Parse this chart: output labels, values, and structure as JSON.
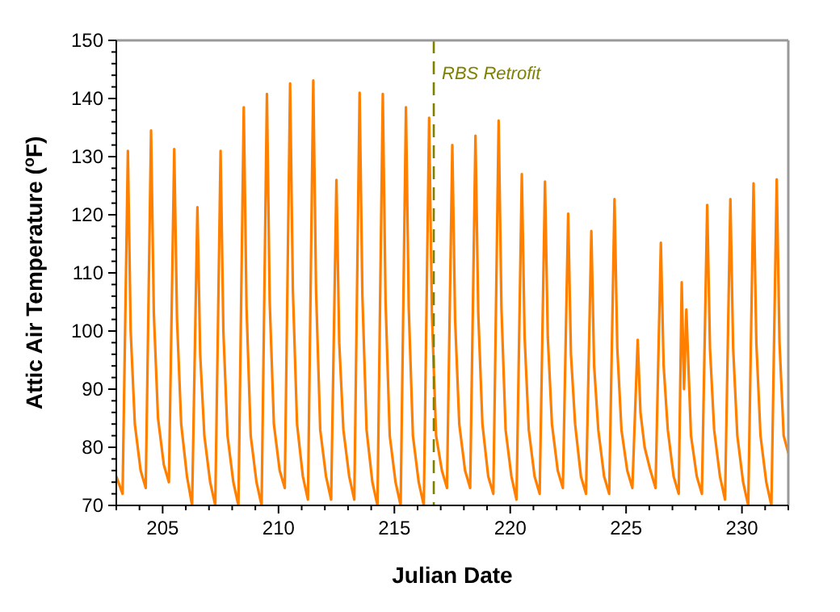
{
  "chart_data": {
    "type": "line",
    "xlabel": "Julian Date",
    "ylabel": "Attic Air Temperature ($^{o}$F)",
    "xlim": [
      203,
      232
    ],
    "ylim": [
      70,
      150
    ],
    "xticks": [
      {
        "value": 203,
        "label": null
      },
      {
        "value": 204,
        "label": null
      },
      205,
      {
        "value": 206,
        "label": null
      },
      {
        "value": 207,
        "label": null
      },
      {
        "value": 208,
        "label": null
      },
      {
        "value": 209,
        "label": null
      },
      210,
      {
        "value": 211,
        "label": null
      },
      {
        "value": 212,
        "label": null
      },
      {
        "value": 213,
        "label": null
      },
      {
        "value": 214,
        "label": null
      },
      215,
      {
        "value": 216,
        "label": null
      },
      {
        "value": 217,
        "label": null
      },
      {
        "value": 218,
        "label": null
      },
      {
        "value": 219,
        "label": null
      },
      220,
      {
        "value": 221,
        "label": null
      },
      {
        "value": 222,
        "label": null
      },
      {
        "value": 223,
        "label": null
      },
      {
        "value": 224,
        "label": null
      },
      225,
      {
        "value": 226,
        "label": null
      },
      {
        "value": 227,
        "label": null
      },
      {
        "value": 228,
        "label": null
      },
      {
        "value": 229,
        "label": null
      },
      230,
      {
        "value": 231,
        "label": null
      },
      {
        "value": 232,
        "label": null
      }
    ],
    "yticks": [
      70,
      {
        "value": 72,
        "label": null
      },
      {
        "value": 74,
        "label": null
      },
      {
        "value": 76,
        "label": null
      },
      {
        "value": 78,
        "label": null
      },
      80,
      {
        "value": 82,
        "label": null
      },
      {
        "value": 84,
        "label": null
      },
      {
        "value": 86,
        "label": null
      },
      {
        "value": 88,
        "label": null
      },
      90,
      {
        "value": 92,
        "label": null
      },
      {
        "value": 94,
        "label": null
      },
      {
        "value": 96,
        "label": null
      },
      {
        "value": 98,
        "label": null
      },
      100,
      {
        "value": 102,
        "label": null
      },
      {
        "value": 104,
        "label": null
      },
      {
        "value": 106,
        "label": null
      },
      {
        "value": 108,
        "label": null
      },
      110,
      {
        "value": 112,
        "label": null
      },
      {
        "value": 114,
        "label": null
      },
      {
        "value": 116,
        "label": null
      },
      {
        "value": 118,
        "label": null
      },
      120,
      {
        "value": 122,
        "label": null
      },
      {
        "value": 124,
        "label": null
      },
      {
        "value": 126,
        "label": null
      },
      {
        "value": 128,
        "label": null
      },
      130,
      {
        "value": 132,
        "label": null
      },
      {
        "value": 134,
        "label": null
      },
      {
        "value": 136,
        "label": null
      },
      {
        "value": 138,
        "label": null
      },
      140,
      {
        "value": 142,
        "label": null
      },
      {
        "value": 144,
        "label": null
      },
      {
        "value": 146,
        "label": null
      },
      {
        "value": 148,
        "label": null
      },
      150
    ],
    "grid": false,
    "marker": "none",
    "line_style": "solid",
    "ref_lines": [
      {
        "axis": "x",
        "value": 216.7,
        "label": "RBS Retrofit",
        "color": "#808000",
        "line_style": "dashed"
      }
    ],
    "series": [
      {
        "color": "#ff8000",
        "x": [
          203.0,
          203.27,
          203.5,
          203.62,
          203.8,
          204.05,
          204.27,
          204.5,
          204.62,
          204.8,
          205.05,
          205.27,
          205.5,
          205.62,
          205.8,
          206.05,
          206.27,
          206.5,
          206.62,
          206.8,
          207.05,
          207.27,
          207.5,
          207.62,
          207.8,
          208.05,
          208.27,
          208.5,
          208.62,
          208.8,
          209.05,
          209.27,
          209.5,
          209.62,
          209.8,
          210.05,
          210.27,
          210.5,
          210.62,
          210.8,
          211.05,
          211.27,
          211.5,
          211.62,
          211.8,
          212.05,
          212.27,
          212.5,
          212.62,
          212.8,
          213.05,
          213.27,
          213.5,
          213.62,
          213.8,
          214.05,
          214.27,
          214.5,
          214.62,
          214.8,
          215.05,
          215.27,
          215.5,
          215.62,
          215.8,
          216.05,
          216.27,
          216.5,
          216.62,
          216.8,
          217.05,
          217.27,
          217.5,
          217.62,
          217.8,
          218.05,
          218.27,
          218.5,
          218.62,
          218.8,
          219.05,
          219.27,
          219.5,
          219.62,
          219.8,
          220.05,
          220.27,
          220.5,
          220.62,
          220.8,
          221.05,
          221.27,
          221.5,
          221.62,
          221.8,
          222.05,
          222.27,
          222.5,
          222.62,
          222.8,
          223.05,
          223.27,
          223.5,
          223.62,
          223.8,
          224.05,
          224.27,
          224.5,
          224.62,
          224.8,
          225.05,
          225.27,
          225.5,
          225.62,
          225.8,
          226.05,
          226.27,
          226.5,
          226.62,
          226.8,
          227.05,
          227.27,
          227.4,
          227.5,
          227.6,
          227.8,
          228.05,
          228.27,
          228.5,
          228.62,
          228.8,
          229.05,
          229.27,
          229.5,
          229.62,
          229.8,
          230.05,
          230.27,
          230.5,
          230.62,
          230.8,
          231.05,
          231.27,
          231.5,
          231.62,
          231.8,
          232.0
        ],
        "values": [
          75,
          72,
          131,
          100,
          84,
          76,
          73,
          134.5,
          103,
          85,
          77,
          74,
          131.3,
          102,
          84,
          75,
          70,
          121.3,
          96,
          82,
          74,
          70,
          131,
          100,
          82,
          74,
          70,
          138.5,
          104,
          82,
          74,
          70,
          140.8,
          105,
          84,
          76,
          73,
          142.6,
          107,
          84,
          75,
          71,
          143.1,
          107,
          83,
          75,
          71,
          126,
          98,
          83,
          75,
          71,
          141,
          106,
          83,
          74,
          70,
          140.8,
          105,
          82,
          74,
          70,
          138.5,
          104,
          82,
          74,
          70,
          136.7,
          103,
          82,
          76,
          73,
          132,
          102,
          84,
          76,
          73,
          133.6,
          103,
          84,
          75,
          72,
          136.2,
          104,
          83,
          75,
          71,
          127,
          99,
          83,
          75,
          72,
          125.7,
          99,
          84,
          76,
          73,
          120.2,
          96,
          84,
          75,
          72,
          117.2,
          94,
          83,
          75,
          72,
          122.7,
          97,
          83,
          76,
          73,
          98.5,
          86,
          80,
          76,
          73,
          115.2,
          94,
          83,
          75,
          72,
          108.4,
          90,
          103.7,
          82,
          75,
          72,
          121.7,
          97,
          83,
          75,
          71,
          122.7,
          97,
          82,
          74,
          70,
          125.4,
          98,
          82,
          74,
          70,
          126.1,
          98,
          82,
          79
        ]
      }
    ]
  }
}
